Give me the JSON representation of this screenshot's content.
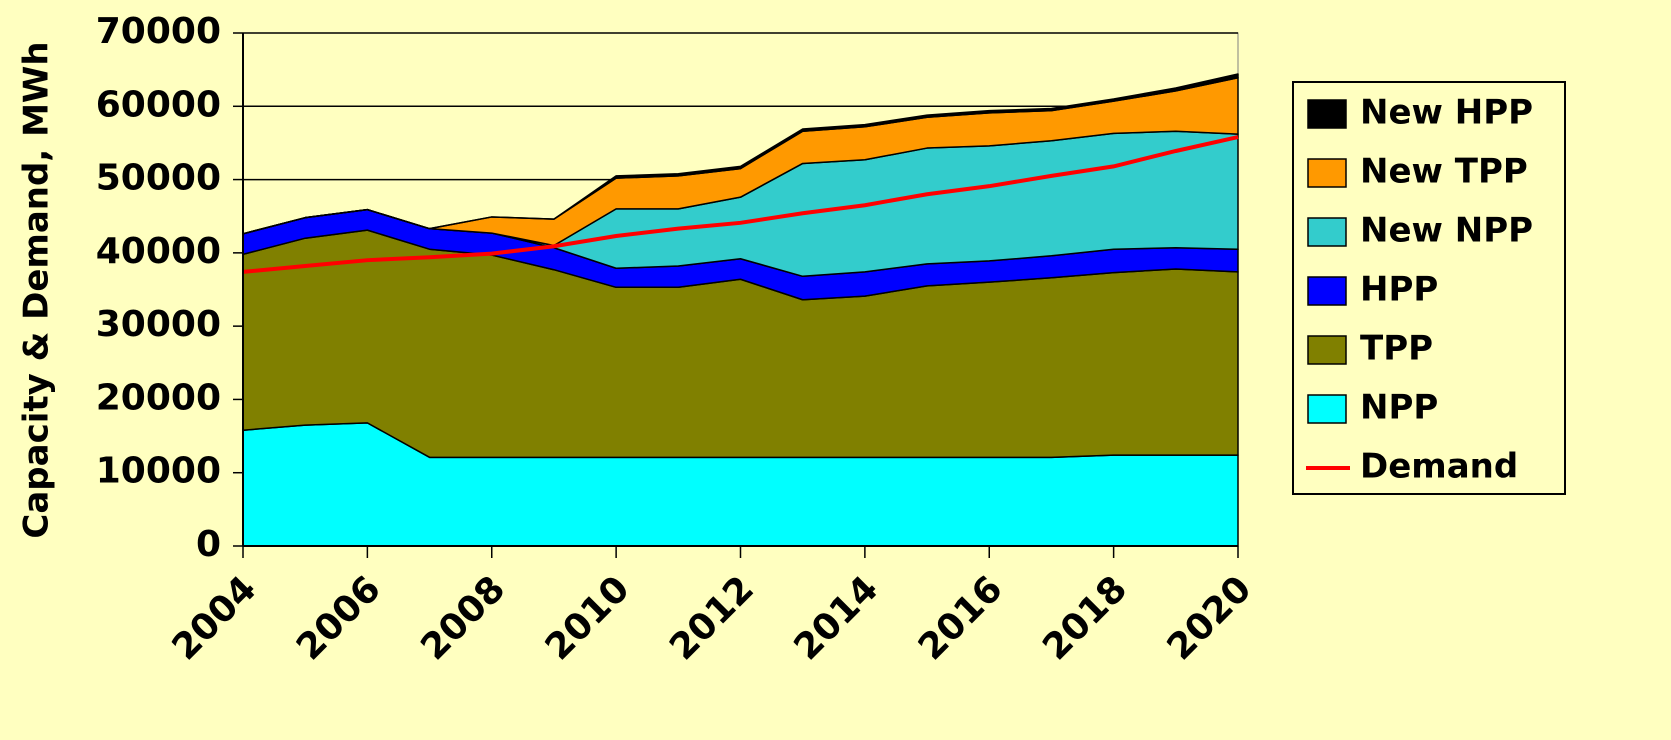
{
  "chart_data": {
    "type": "stacked_area",
    "y_label": "Capacity & Demand, MWh",
    "x": [
      2004,
      2005,
      2006,
      2007,
      2008,
      2009,
      2010,
      2011,
      2012,
      2013,
      2014,
      2015,
      2016,
      2017,
      2018,
      2019,
      2020
    ],
    "xlim": [
      2004,
      2020
    ],
    "xticks": [
      2004,
      2006,
      2008,
      2010,
      2012,
      2014,
      2016,
      2018,
      2020
    ],
    "ylim": [
      0,
      70000
    ],
    "yticks": [
      0,
      10000,
      20000,
      30000,
      40000,
      50000,
      60000,
      70000
    ],
    "grid": true,
    "legend": "right",
    "series": [
      {
        "name": "NPP",
        "color": "#00ffff",
        "values": [
          15800,
          16500,
          16800,
          12100,
          12100,
          12100,
          12100,
          12100,
          12100,
          12100,
          12100,
          12100,
          12100,
          12100,
          12400,
          12400,
          12400
        ]
      },
      {
        "name": "TPP",
        "color": "#808000",
        "values": [
          24000,
          25500,
          26300,
          28400,
          27600,
          25600,
          23200,
          23200,
          24300,
          21500,
          22000,
          23400,
          23900,
          24500,
          24900,
          25400,
          25000
        ]
      },
      {
        "name": "HPP",
        "color": "#0000ff",
        "values": [
          2800,
          2800,
          2800,
          2800,
          3000,
          3000,
          2600,
          2900,
          2800,
          3200,
          3300,
          3000,
          2900,
          3000,
          3200,
          2900,
          3100
        ]
      },
      {
        "name": "New NPP",
        "color": "#33cccc",
        "values": [
          0,
          0,
          0,
          0,
          0,
          300,
          8100,
          7800,
          8400,
          15400,
          15300,
          15800,
          15700,
          15700,
          15800,
          15900,
          15700
        ]
      },
      {
        "name": "New TPP",
        "color": "#ff9900",
        "values": [
          0,
          0,
          0,
          0,
          2200,
          3600,
          4200,
          4500,
          3900,
          4400,
          4500,
          4200,
          4500,
          4100,
          4400,
          5500,
          7700
        ]
      },
      {
        "name": "New HPP",
        "color": "#000000",
        "values": [
          0,
          0,
          0,
          0,
          0,
          0,
          300,
          300,
          300,
          300,
          300,
          300,
          300,
          300,
          300,
          400,
          500
        ]
      },
      {
        "name": "Demand",
        "color": "#ff0000",
        "kind": "line",
        "values": [
          37400,
          38200,
          39000,
          39400,
          39900,
          40900,
          42300,
          43300,
          44100,
          45400,
          46500,
          48000,
          49100,
          50500,
          51800,
          53900,
          55800
        ]
      }
    ]
  }
}
